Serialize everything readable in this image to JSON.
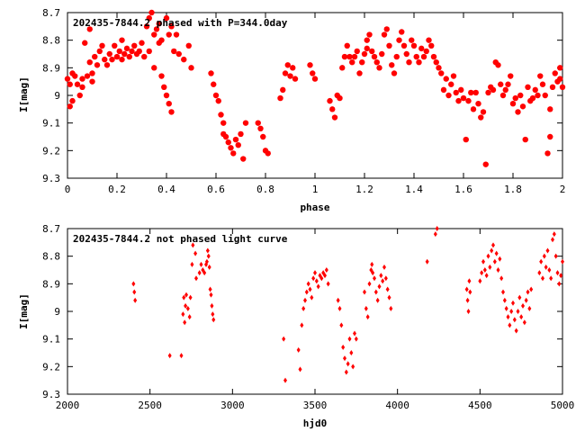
{
  "chart_data": [
    {
      "type": "scatter",
      "title": "202435-7844.2 phased with P=344.0day",
      "xlabel": "phase",
      "ylabel": "I[mag]",
      "xlim": [
        0,
        2
      ],
      "ylim": [
        9.3,
        8.7
      ],
      "y_inverted": true,
      "xticks": [
        "0",
        "0.2",
        "0.4",
        "0.6",
        "0.8",
        "1",
        "1.2",
        "1.4",
        "1.6",
        "1.8",
        "2"
      ],
      "yticks": [
        "8.7",
        "8.8",
        "8.9",
        "9",
        "9.1",
        "9.2",
        "9.3"
      ],
      "marker": "filled-circle-large",
      "color": "#ff0000",
      "points": [
        [
          0.0,
          8.94
        ],
        [
          0.01,
          8.96
        ],
        [
          0.01,
          9.04
        ],
        [
          0.02,
          8.92
        ],
        [
          0.02,
          9.02
        ],
        [
          0.03,
          8.93
        ],
        [
          0.04,
          8.96
        ],
        [
          0.05,
          9.0
        ],
        [
          0.06,
          8.94
        ],
        [
          0.06,
          8.97
        ],
        [
          0.07,
          8.81
        ],
        [
          0.08,
          8.93
        ],
        [
          0.09,
          8.76
        ],
        [
          0.09,
          8.88
        ],
        [
          0.1,
          8.92
        ],
        [
          0.1,
          8.95
        ],
        [
          0.11,
          8.86
        ],
        [
          0.12,
          8.89
        ],
        [
          0.13,
          8.84
        ],
        [
          0.14,
          8.82
        ],
        [
          0.15,
          8.87
        ],
        [
          0.16,
          8.89
        ],
        [
          0.17,
          8.85
        ],
        [
          0.18,
          8.87
        ],
        [
          0.19,
          8.82
        ],
        [
          0.2,
          8.86
        ],
        [
          0.21,
          8.84
        ],
        [
          0.22,
          8.8
        ],
        [
          0.22,
          8.87
        ],
        [
          0.23,
          8.85
        ],
        [
          0.24,
          8.83
        ],
        [
          0.25,
          8.86
        ],
        [
          0.26,
          8.84
        ],
        [
          0.27,
          8.82
        ],
        [
          0.28,
          8.85
        ],
        [
          0.29,
          8.84
        ],
        [
          0.3,
          8.81
        ],
        [
          0.31,
          8.86
        ],
        [
          0.32,
          8.75
        ],
        [
          0.33,
          8.72
        ],
        [
          0.33,
          8.84
        ],
        [
          0.34,
          8.7
        ],
        [
          0.35,
          8.78
        ],
        [
          0.35,
          8.9
        ],
        [
          0.36,
          8.76
        ],
        [
          0.37,
          8.81
        ],
        [
          0.37,
          8.74
        ],
        [
          0.38,
          8.93
        ],
        [
          0.38,
          8.8
        ],
        [
          0.39,
          8.97
        ],
        [
          0.4,
          8.72
        ],
        [
          0.4,
          9.0
        ],
        [
          0.41,
          8.78
        ],
        [
          0.41,
          9.03
        ],
        [
          0.42,
          9.06
        ],
        [
          0.42,
          8.75
        ],
        [
          0.43,
          8.84
        ],
        [
          0.44,
          8.78
        ],
        [
          0.45,
          8.85
        ],
        [
          0.47,
          8.87
        ],
        [
          0.49,
          8.82
        ],
        [
          0.5,
          8.9
        ],
        [
          0.58,
          8.92
        ],
        [
          0.59,
          8.96
        ],
        [
          0.6,
          9.0
        ],
        [
          0.61,
          9.02
        ],
        [
          0.62,
          9.07
        ],
        [
          0.63,
          9.1
        ],
        [
          0.63,
          9.14
        ],
        [
          0.64,
          9.15
        ],
        [
          0.65,
          9.17
        ],
        [
          0.66,
          9.19
        ],
        [
          0.67,
          9.21
        ],
        [
          0.68,
          9.16
        ],
        [
          0.69,
          9.18
        ],
        [
          0.7,
          9.14
        ],
        [
          0.71,
          9.23
        ],
        [
          0.72,
          9.1
        ],
        [
          0.77,
          9.1
        ],
        [
          0.78,
          9.12
        ],
        [
          0.79,
          9.15
        ],
        [
          0.8,
          9.2
        ],
        [
          0.81,
          9.21
        ],
        [
          0.86,
          9.01
        ],
        [
          0.87,
          8.98
        ],
        [
          0.88,
          8.92
        ],
        [
          0.89,
          8.89
        ],
        [
          0.9,
          8.93
        ],
        [
          0.91,
          8.9
        ],
        [
          0.92,
          8.94
        ],
        [
          0.98,
          8.89
        ],
        [
          0.99,
          8.92
        ],
        [
          1.0,
          8.94
        ],
        [
          1.06,
          9.02
        ],
        [
          1.07,
          9.05
        ],
        [
          1.08,
          9.08
        ],
        [
          1.09,
          9.0
        ],
        [
          1.1,
          9.01
        ],
        [
          1.11,
          8.9
        ],
        [
          1.12,
          8.86
        ],
        [
          1.13,
          8.82
        ],
        [
          1.14,
          8.86
        ],
        [
          1.15,
          8.88
        ],
        [
          1.16,
          8.86
        ],
        [
          1.17,
          8.84
        ],
        [
          1.18,
          8.92
        ],
        [
          1.19,
          8.88
        ],
        [
          1.2,
          8.85
        ],
        [
          1.21,
          8.8
        ],
        [
          1.21,
          8.83
        ],
        [
          1.22,
          8.78
        ],
        [
          1.23,
          8.84
        ],
        [
          1.24,
          8.86
        ],
        [
          1.25,
          8.88
        ],
        [
          1.26,
          8.9
        ],
        [
          1.27,
          8.85
        ],
        [
          1.28,
          8.78
        ],
        [
          1.29,
          8.76
        ],
        [
          1.3,
          8.82
        ],
        [
          1.31,
          8.89
        ],
        [
          1.32,
          8.92
        ],
        [
          1.33,
          8.86
        ],
        [
          1.34,
          8.8
        ],
        [
          1.35,
          8.77
        ],
        [
          1.36,
          8.82
        ],
        [
          1.37,
          8.85
        ],
        [
          1.38,
          8.88
        ],
        [
          1.39,
          8.8
        ],
        [
          1.4,
          8.82
        ],
        [
          1.41,
          8.86
        ],
        [
          1.42,
          8.88
        ],
        [
          1.43,
          8.83
        ],
        [
          1.44,
          8.86
        ],
        [
          1.45,
          8.84
        ],
        [
          1.46,
          8.8
        ],
        [
          1.47,
          8.82
        ],
        [
          1.48,
          8.86
        ],
        [
          1.49,
          8.88
        ],
        [
          1.5,
          8.9
        ],
        [
          1.51,
          8.92
        ],
        [
          1.52,
          8.98
        ],
        [
          1.53,
          8.94
        ],
        [
          1.54,
          9.0
        ],
        [
          1.55,
          8.96
        ],
        [
          1.56,
          8.93
        ],
        [
          1.57,
          8.99
        ],
        [
          1.58,
          9.02
        ],
        [
          1.59,
          8.98
        ],
        [
          1.6,
          9.01
        ],
        [
          1.61,
          9.16
        ],
        [
          1.62,
          9.02
        ],
        [
          1.63,
          8.99
        ],
        [
          1.64,
          9.05
        ],
        [
          1.65,
          8.99
        ],
        [
          1.66,
          9.03
        ],
        [
          1.67,
          9.08
        ],
        [
          1.68,
          9.06
        ],
        [
          1.69,
          9.25
        ],
        [
          1.7,
          8.99
        ],
        [
          1.71,
          8.97
        ],
        [
          1.72,
          8.98
        ],
        [
          1.73,
          8.88
        ],
        [
          1.74,
          8.89
        ],
        [
          1.75,
          8.96
        ],
        [
          1.76,
          9.0
        ],
        [
          1.77,
          8.98
        ],
        [
          1.78,
          8.96
        ],
        [
          1.79,
          8.93
        ],
        [
          1.8,
          9.03
        ],
        [
          1.81,
          9.01
        ],
        [
          1.82,
          9.06
        ],
        [
          1.83,
          9.0
        ],
        [
          1.84,
          9.04
        ],
        [
          1.85,
          9.16
        ],
        [
          1.86,
          8.97
        ],
        [
          1.87,
          9.02
        ],
        [
          1.88,
          9.01
        ],
        [
          1.89,
          8.98
        ],
        [
          1.9,
          9.0
        ],
        [
          1.91,
          8.93
        ],
        [
          1.92,
          8.96
        ],
        [
          1.93,
          9.0
        ],
        [
          1.94,
          9.21
        ],
        [
          1.95,
          9.15
        ],
        [
          1.95,
          9.05
        ],
        [
          1.96,
          8.97
        ],
        [
          1.97,
          8.92
        ],
        [
          1.98,
          8.95
        ],
        [
          1.99,
          8.9
        ],
        [
          1.99,
          8.94
        ],
        [
          2.0,
          8.97
        ]
      ]
    },
    {
      "type": "scatter",
      "title": "202435-7844.2 not phased light curve",
      "xlabel": "hjd0",
      "ylabel": "I[mag]",
      "xlim": [
        2000,
        5000
      ],
      "ylim": [
        9.3,
        8.7
      ],
      "y_inverted": true,
      "xticks": [
        "2000",
        "2500",
        "3000",
        "3500",
        "4000",
        "4500",
        "5000"
      ],
      "yticks": [
        "8.7",
        "8.8",
        "8.9",
        "9",
        "9.1",
        "9.2",
        "9.3"
      ],
      "marker": "small-diamond",
      "color": "#ff0000",
      "points": [
        [
          2400,
          8.9
        ],
        [
          2405,
          8.93
        ],
        [
          2410,
          8.96
        ],
        [
          2620,
          9.16
        ],
        [
          2690,
          9.16
        ],
        [
          2700,
          9.01
        ],
        [
          2705,
          8.95
        ],
        [
          2710,
          9.04
        ],
        [
          2715,
          8.98
        ],
        [
          2720,
          8.94
        ],
        [
          2730,
          8.99
        ],
        [
          2740,
          9.02
        ],
        [
          2745,
          8.95
        ],
        [
          2755,
          8.83
        ],
        [
          2760,
          8.76
        ],
        [
          2775,
          8.79
        ],
        [
          2780,
          8.88
        ],
        [
          2800,
          8.86
        ],
        [
          2810,
          8.83
        ],
        [
          2820,
          8.85
        ],
        [
          2830,
          8.86
        ],
        [
          2840,
          8.83
        ],
        [
          2845,
          8.82
        ],
        [
          2850,
          8.78
        ],
        [
          2855,
          8.8
        ],
        [
          2860,
          8.84
        ],
        [
          2865,
          8.92
        ],
        [
          2870,
          8.94
        ],
        [
          2875,
          8.98
        ],
        [
          2880,
          9.01
        ],
        [
          2885,
          9.03
        ],
        [
          3310,
          9.1
        ],
        [
          3320,
          9.25
        ],
        [
          3400,
          9.14
        ],
        [
          3410,
          9.21
        ],
        [
          3420,
          9.05
        ],
        [
          3430,
          8.99
        ],
        [
          3440,
          8.96
        ],
        [
          3450,
          8.93
        ],
        [
          3460,
          8.9
        ],
        [
          3470,
          8.92
        ],
        [
          3480,
          8.95
        ],
        [
          3490,
          8.88
        ],
        [
          3500,
          8.86
        ],
        [
          3510,
          8.89
        ],
        [
          3520,
          8.91
        ],
        [
          3530,
          8.87
        ],
        [
          3540,
          8.88
        ],
        [
          3550,
          8.86
        ],
        [
          3560,
          8.87
        ],
        [
          3570,
          8.85
        ],
        [
          3580,
          8.9
        ],
        [
          3640,
          8.96
        ],
        [
          3650,
          8.99
        ],
        [
          3660,
          9.05
        ],
        [
          3670,
          9.13
        ],
        [
          3680,
          9.17
        ],
        [
          3690,
          9.22
        ],
        [
          3700,
          9.19
        ],
        [
          3710,
          9.1
        ],
        [
          3720,
          9.15
        ],
        [
          3730,
          9.2
        ],
        [
          3740,
          9.08
        ],
        [
          3750,
          9.1
        ],
        [
          3800,
          8.93
        ],
        [
          3810,
          8.99
        ],
        [
          3820,
          9.02
        ],
        [
          3830,
          8.9
        ],
        [
          3840,
          8.85
        ],
        [
          3845,
          8.83
        ],
        [
          3850,
          8.86
        ],
        [
          3860,
          8.88
        ],
        [
          3870,
          8.93
        ],
        [
          3880,
          8.96
        ],
        [
          3890,
          8.91
        ],
        [
          3900,
          8.87
        ],
        [
          3910,
          8.89
        ],
        [
          3920,
          8.84
        ],
        [
          3930,
          8.88
        ],
        [
          3940,
          8.92
        ],
        [
          3950,
          8.95
        ],
        [
          3960,
          8.99
        ],
        [
          4180,
          8.82
        ],
        [
          4230,
          8.72
        ],
        [
          4240,
          8.7
        ],
        [
          4420,
          8.92
        ],
        [
          4425,
          8.96
        ],
        [
          4430,
          9.0
        ],
        [
          4435,
          8.89
        ],
        [
          4440,
          8.93
        ],
        [
          4500,
          8.89
        ],
        [
          4510,
          8.86
        ],
        [
          4520,
          8.82
        ],
        [
          4530,
          8.85
        ],
        [
          4540,
          8.87
        ],
        [
          4550,
          8.8
        ],
        [
          4560,
          8.84
        ],
        [
          4570,
          8.78
        ],
        [
          4580,
          8.76
        ],
        [
          4590,
          8.82
        ],
        [
          4600,
          8.79
        ],
        [
          4610,
          8.85
        ],
        [
          4620,
          8.81
        ],
        [
          4630,
          8.88
        ],
        [
          4640,
          8.93
        ],
        [
          4650,
          8.96
        ],
        [
          4660,
          8.99
        ],
        [
          4670,
          9.02
        ],
        [
          4680,
          9.05
        ],
        [
          4690,
          9.0
        ],
        [
          4700,
          8.97
        ],
        [
          4710,
          9.03
        ],
        [
          4720,
          9.07
        ],
        [
          4730,
          9.0
        ],
        [
          4740,
          8.95
        ],
        [
          4750,
          9.02
        ],
        [
          4760,
          8.98
        ],
        [
          4770,
          9.04
        ],
        [
          4780,
          8.96
        ],
        [
          4790,
          8.93
        ],
        [
          4800,
          8.99
        ],
        [
          4810,
          8.92
        ],
        [
          4860,
          8.86
        ],
        [
          4870,
          8.82
        ],
        [
          4880,
          8.88
        ],
        [
          4890,
          8.8
        ],
        [
          4900,
          8.84
        ],
        [
          4910,
          8.78
        ],
        [
          4920,
          8.85
        ],
        [
          4930,
          8.88
        ],
        [
          4940,
          8.74
        ],
        [
          4950,
          8.72
        ],
        [
          4960,
          8.8
        ],
        [
          4970,
          8.86
        ],
        [
          4980,
          8.9
        ],
        [
          4990,
          8.87
        ],
        [
          5000,
          8.82
        ]
      ]
    }
  ]
}
